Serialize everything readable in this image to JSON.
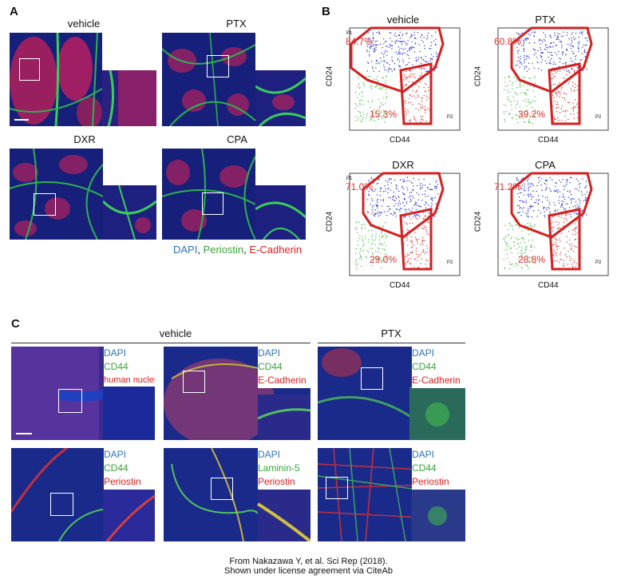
{
  "panel_a": {
    "letter": "A",
    "conditions": [
      "vehicle",
      "PTX",
      "DXR",
      "CPA"
    ],
    "legend": {
      "dapi": "DAPI",
      "sep1": ", ",
      "periostin": "Periostin",
      "sep2": ", ",
      "ecad": "E-Cadherin"
    }
  },
  "panel_b": {
    "letter": "B",
    "plots": [
      {
        "title": "vehicle",
        "p1_pct": "84.7%",
        "p2_pct": "15.3%"
      },
      {
        "title": "PTX",
        "p1_pct": "60.8%",
        "p2_pct": "39.2%"
      },
      {
        "title": "DXR",
        "p1_pct": "71.0%",
        "p2_pct": "29.0%"
      },
      {
        "title": "CPA",
        "p1_pct": "71.2%",
        "p2_pct": "28.8%"
      }
    ],
    "xlabel": "CD44",
    "ylabel": "CD24",
    "gate1": "P1",
    "gate2": "P2"
  },
  "panel_c": {
    "letter": "C",
    "group_vehicle": "vehicle",
    "group_ptx": "PTX",
    "images": [
      {
        "stains": [
          "DAPI",
          "CD44",
          "human nuclei"
        ]
      },
      {
        "stains": [
          "DAPI",
          "CD44",
          "E-Cadherin"
        ]
      },
      {
        "stains": [
          "DAPI",
          "CD44",
          "E-Cadherin"
        ]
      },
      {
        "stains": [
          "DAPI",
          "CD44",
          "Periostin"
        ]
      },
      {
        "stains": [
          "DAPI",
          "Laminin-5",
          "Periostin"
        ]
      },
      {
        "stains": [
          "DAPI",
          "CD44",
          "Periostin"
        ]
      }
    ]
  },
  "colors": {
    "dapi": "#2e75b6",
    "green": "#3aa63a",
    "red": "#e02020",
    "gate": "#d42020"
  },
  "footer": {
    "line1": "From Nakazawa Y, et al. Sci Rep (2018).",
    "line2": "Shown under license agreement via CiteAb"
  }
}
